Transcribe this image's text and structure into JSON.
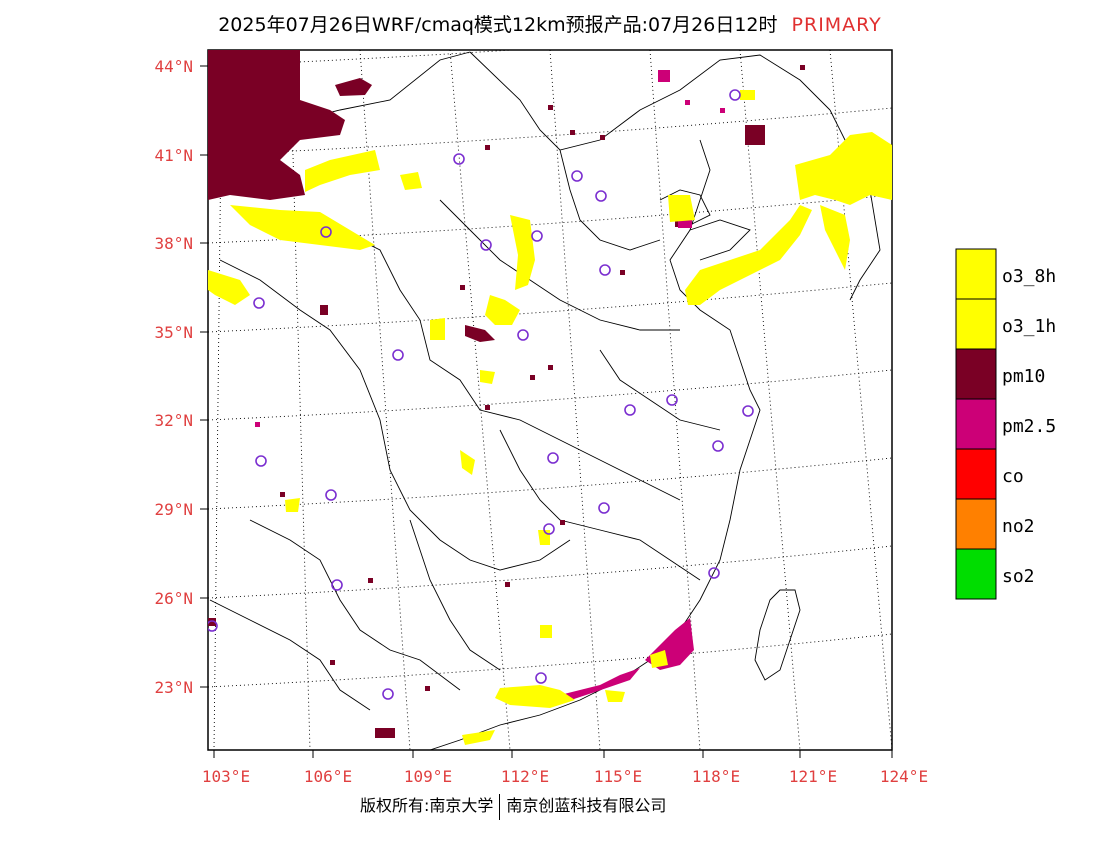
{
  "title": {
    "main": "2025年07月26日WRF/cmaq模式12km预报产品:07月26日12时",
    "tag": "PRIMARY"
  },
  "axes": {
    "lat_labels": [
      "44°N",
      "41°N",
      "38°N",
      "35°N",
      "32°N",
      "29°N",
      "26°N",
      "23°N"
    ],
    "lon_labels": [
      "103°E",
      "106°E",
      "109°E",
      "112°E",
      "115°E",
      "118°E",
      "121°E",
      "124°E"
    ]
  },
  "legend": {
    "items": [
      {
        "label": "o3_8h",
        "color": "#ffff00"
      },
      {
        "label": "o3_1h",
        "color": "#ffff00"
      },
      {
        "label": "pm10",
        "color": "#7a0025"
      },
      {
        "label": "pm2.5",
        "color": "#cc0077"
      },
      {
        "label": "co",
        "color": "#ff0000"
      },
      {
        "label": "no2",
        "color": "#ff8000"
      },
      {
        "label": "so2",
        "color": "#00dd00"
      }
    ]
  },
  "colors": {
    "pm10": "#7a0025",
    "pm25": "#cc0077",
    "o3": "#ffff00",
    "station": "#7b2fd0",
    "axis_text": "#e04040"
  },
  "footer": {
    "copyright": "版权所有:南京大学",
    "company": "南京创蓝科技有限公司"
  }
}
